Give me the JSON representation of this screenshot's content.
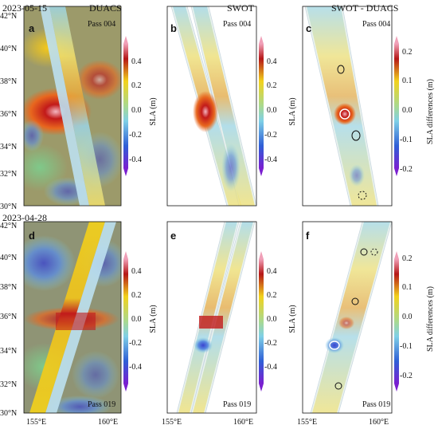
{
  "figure": {
    "panels": [
      {
        "letter": "a",
        "title": "DUACS",
        "date": "2023-05-15",
        "pass": "Pass 004"
      },
      {
        "letter": "b",
        "title": "SWOT",
        "pass": "Pass 004"
      },
      {
        "letter": "c",
        "title": "SWOT - DUACS",
        "pass": "Pass 004"
      },
      {
        "letter": "d",
        "date": "2023-04-28",
        "pass": "Pass 019"
      },
      {
        "letter": "e",
        "pass": "Pass 019"
      },
      {
        "letter": "f",
        "pass": "Pass 019"
      }
    ],
    "lat_ticks": [
      "42°N",
      "40°N",
      "38°N",
      "36°N",
      "34°N",
      "32°N",
      "30°N"
    ],
    "lon_ticks": [
      "155°E",
      "160°E"
    ],
    "colorbars": {
      "sla": {
        "label": "SLA (m)",
        "ticks": [
          "0.4",
          "0.2",
          "0.0",
          "-0.2",
          "-0.4"
        ]
      },
      "diff": {
        "label": "SLA differences (m)",
        "ticks": [
          "0.2",
          "0.1",
          "0.0",
          "-0.1",
          "-0.2"
        ]
      }
    },
    "colors": {
      "red": "#b51717",
      "yellow": "#f2d21c",
      "green": "#8fc77e",
      "cyan": "#7fd0e6",
      "blue": "#2f5fd6",
      "purple": "#7a1fd0",
      "pink": "#f0a0b8"
    }
  }
}
